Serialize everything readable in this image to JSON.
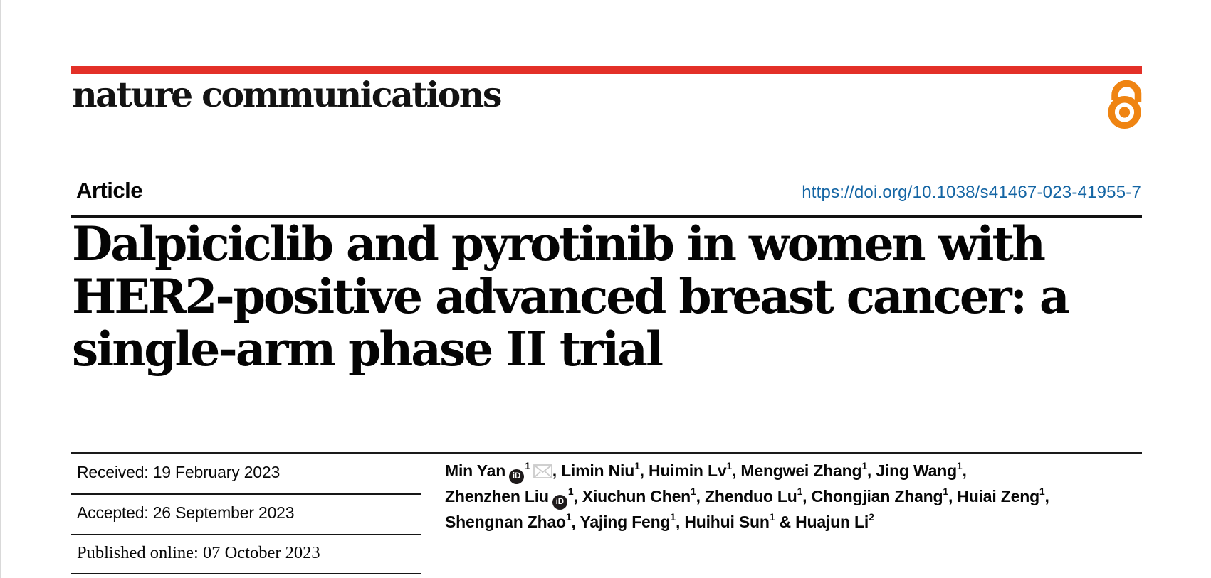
{
  "page": {
    "accent_red": "#e33028",
    "oa_orange": "#ef8412",
    "link_blue": "#1465a4"
  },
  "masthead": {
    "journal_name": "nature communications",
    "open_access_icon": "open-access-padlock"
  },
  "article_header": {
    "article_type": "Article",
    "doi_url": "https://doi.org/10.1038/s41467-023-41955-7"
  },
  "title": {
    "full": "Dalpiciclib and pyrotinib in women with HER2-positive advanced breast cancer: a single-arm phase II trial",
    "lines": [
      "Dalpiciclib and pyrotinib in women with",
      "HER2-positive advanced breast cancer: a",
      "single-arm phase II trial"
    ]
  },
  "history": [
    {
      "label": "Received:",
      "date": "19 February 2023"
    },
    {
      "label": "Accepted:",
      "date": "26 September 2023"
    },
    {
      "label": "Published online:",
      "date": "07 October 2023"
    }
  ],
  "icons": {
    "orcid_text": "iD"
  },
  "authors": {
    "lines": [
      [
        {
          "name": "Min Yan",
          "sup": "1",
          "orcid": true,
          "email": true,
          "sep": ", "
        },
        {
          "name": "Limin Niu",
          "sup": "1",
          "sep": ", "
        },
        {
          "name": "Huimin Lv",
          "sup": "1",
          "sep": ", "
        },
        {
          "name": "Mengwei Zhang",
          "sup": "1",
          "sep": ", "
        },
        {
          "name": "Jing Wang",
          "sup": "1",
          "sep": ","
        }
      ],
      [
        {
          "name": "Zhenzhen Liu",
          "sup": "1",
          "orcid": true,
          "sep": ", "
        },
        {
          "name": "Xiuchun Chen",
          "sup": "1",
          "sep": ", "
        },
        {
          "name": "Zhenduo Lu",
          "sup": "1",
          "sep": ", "
        },
        {
          "name": "Chongjian Zhang",
          "sup": "1",
          "sep": ", "
        },
        {
          "name": "Huiai Zeng",
          "sup": "1",
          "sep": ","
        }
      ],
      [
        {
          "name": "Shengnan Zhao",
          "sup": "1",
          "sep": ", "
        },
        {
          "name": "Yajing Feng",
          "sup": "1",
          "sep": ", "
        },
        {
          "name": "Huihui Sun",
          "sup": "1",
          "sep": " & "
        },
        {
          "name": "Huajun Li",
          "sup": "2",
          "sep": ""
        }
      ]
    ]
  }
}
